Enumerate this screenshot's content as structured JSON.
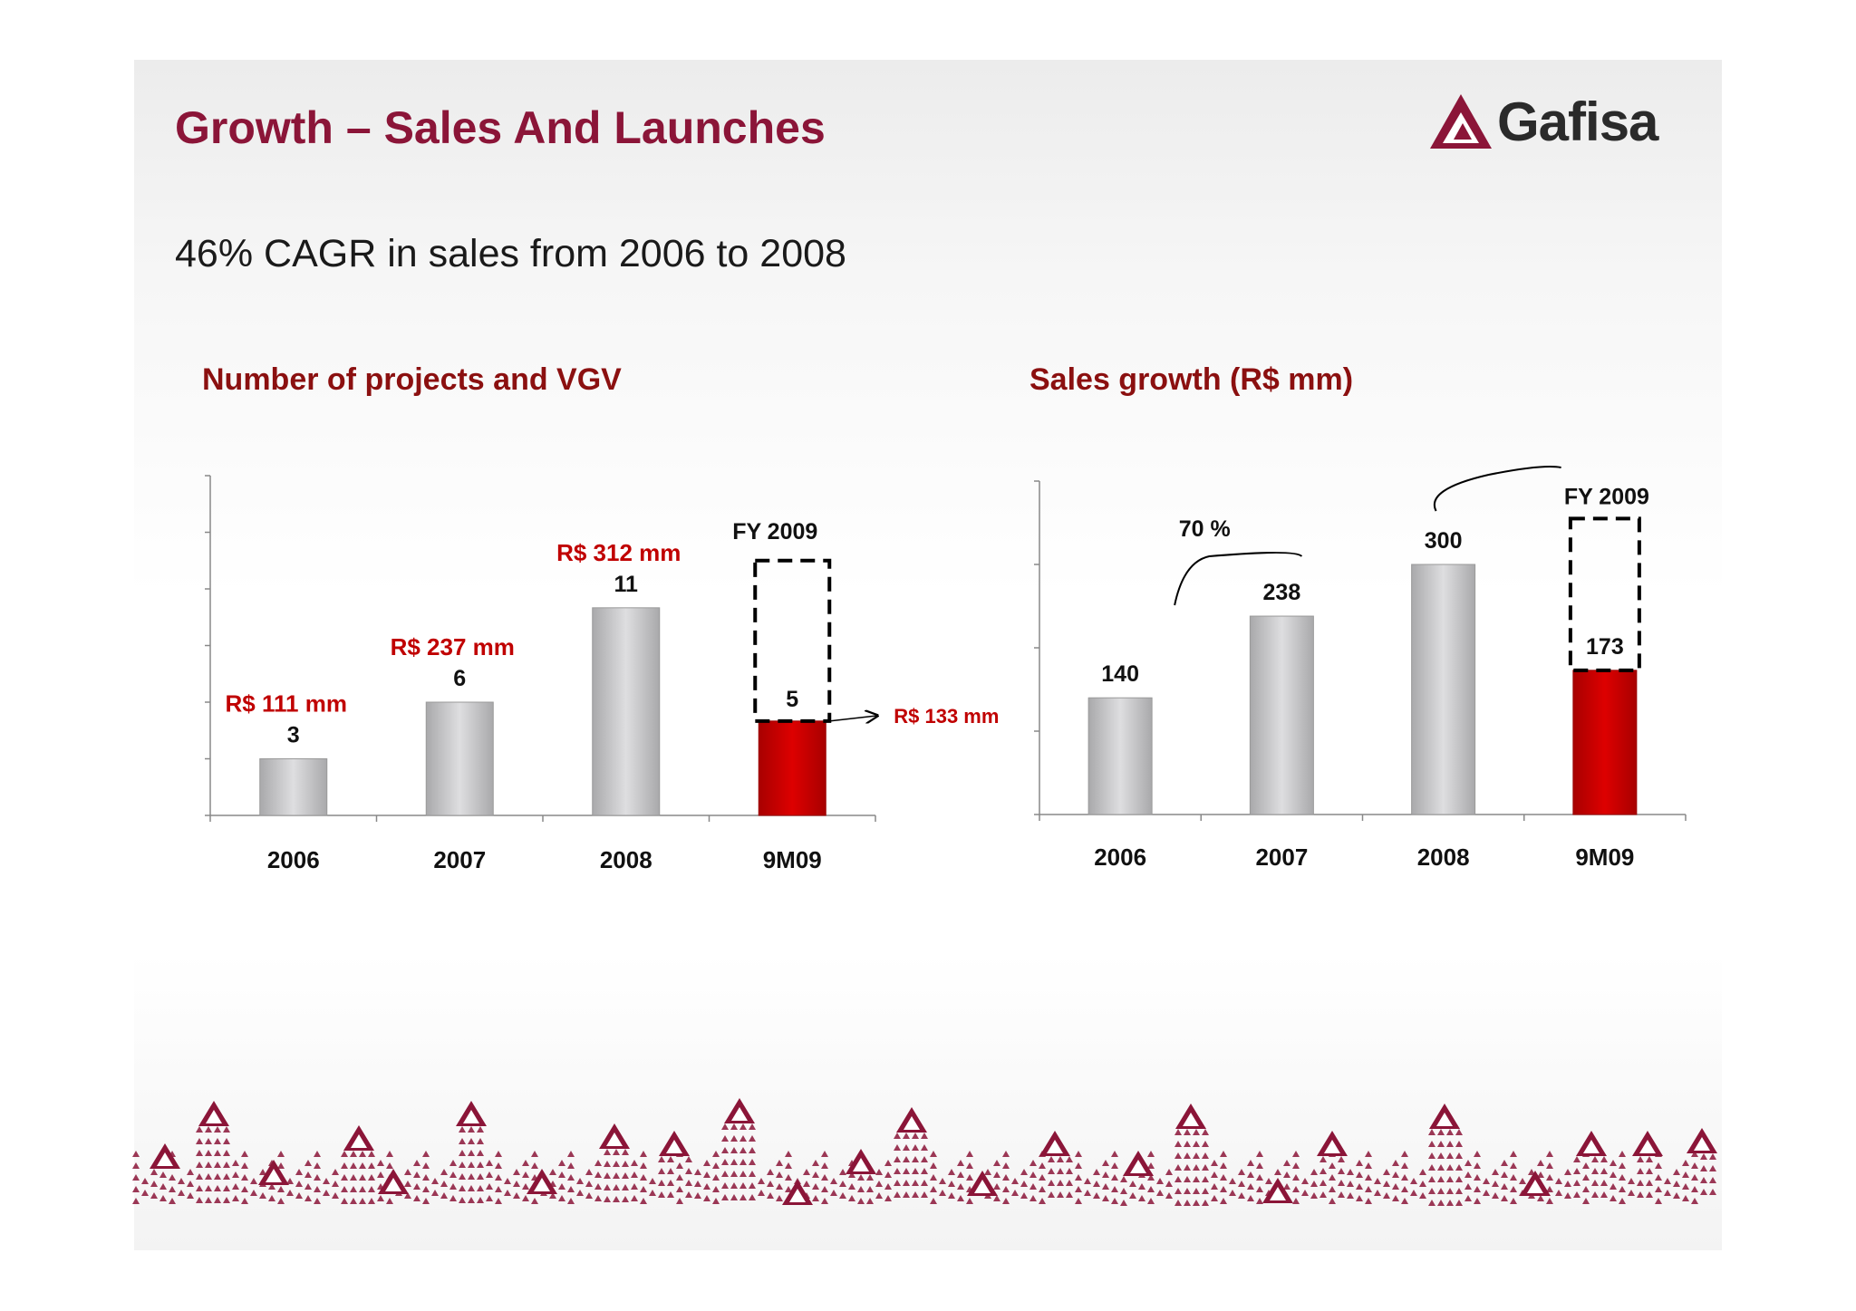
{
  "slide": {
    "title": "Growth – Sales And Launches",
    "subtitle": "46% CAGR in sales from 2006 to 2008",
    "logo_text": "Gafisa",
    "logo_icon": "gafisa-triangle-logo-icon"
  },
  "colors": {
    "brand": "#8b1538",
    "accent_red": "#cc0000",
    "bar_gray": "#c9c9cb",
    "label_red": "#c00000"
  },
  "chart_data": [
    {
      "type": "bar",
      "title": "Number of projects and VGV",
      "categories": [
        "2006",
        "2007",
        "2008",
        "9M09"
      ],
      "values": [
        3,
        6,
        11,
        5
      ],
      "value_labels": [
        "3",
        "6",
        "11",
        "5"
      ],
      "vgv_labels": [
        "R$ 111 mm",
        "R$ 237 mm",
        "R$ 312 mm",
        ""
      ],
      "highlight_index": 3,
      "projection": {
        "label": "FY 2009",
        "top_value": 13.5
      },
      "callout": "R$ 133 mm",
      "ylim": [
        0,
        18
      ],
      "xlabel": "",
      "ylabel": "",
      "grid": false
    },
    {
      "type": "bar",
      "title": "Sales growth (R$ mm)",
      "categories": [
        "2006",
        "2007",
        "2008",
        "9M09"
      ],
      "values": [
        140,
        238,
        300,
        173
      ],
      "value_labels": [
        "140",
        "238",
        "300",
        "173"
      ],
      "highlight_index": 3,
      "projection": {
        "label": "FY 2009",
        "top_value": 355
      },
      "growth_annotation": "70 %",
      "ylim": [
        0,
        400
      ],
      "xlabel": "",
      "ylabel": "",
      "grid": false
    }
  ]
}
